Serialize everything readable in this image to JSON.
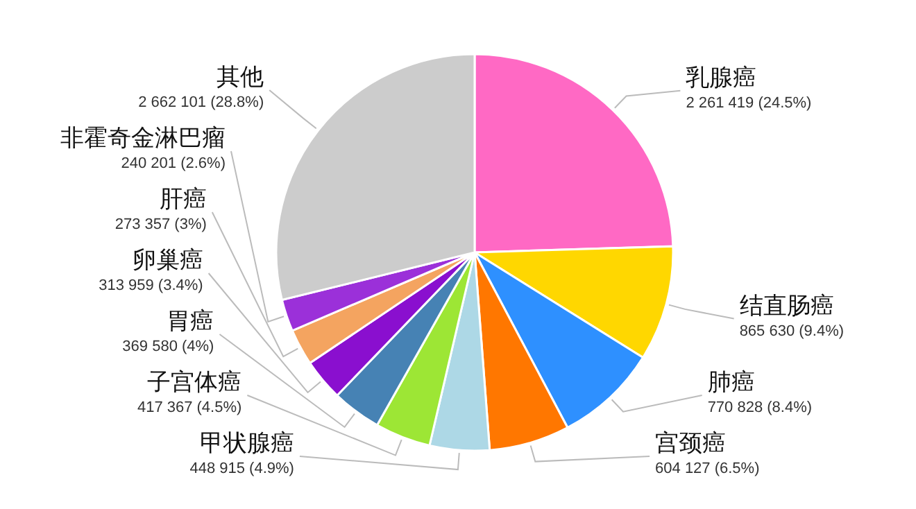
{
  "chart_data": {
    "type": "pie",
    "categories": [
      "乳腺癌",
      "结直肠癌",
      "肺癌",
      "宫颈癌",
      "甲状腺癌",
      "子宫体癌",
      "胃癌",
      "卵巢癌",
      "肝癌",
      "非霍奇金淋巴瘤",
      "其他"
    ],
    "values": [
      2261419,
      865630,
      770828,
      604127,
      448915,
      417367,
      369580,
      313959,
      273357,
      240201,
      2662101
    ],
    "value_labels": [
      "2 261 419 (24.5%)",
      "865 630 (9.4%)",
      "770 828 (8.4%)",
      "604 127 (6.5%)",
      "448 915 (4.9%)",
      "417 367 (4.5%)",
      "369 580 (4%)",
      "313 959 (3.4%)",
      "273 357 (3%)",
      "240 201 (2.6%)",
      "2 662 101 (28.8%)"
    ],
    "colors": [
      "#ff69c4",
      "#ffd700",
      "#2e90ff",
      "#ff7700",
      "#add8e6",
      "#9de635",
      "#4682b4",
      "#8a0fcf",
      "#f4a460",
      "#9b30d9",
      "#cccccc"
    ]
  }
}
